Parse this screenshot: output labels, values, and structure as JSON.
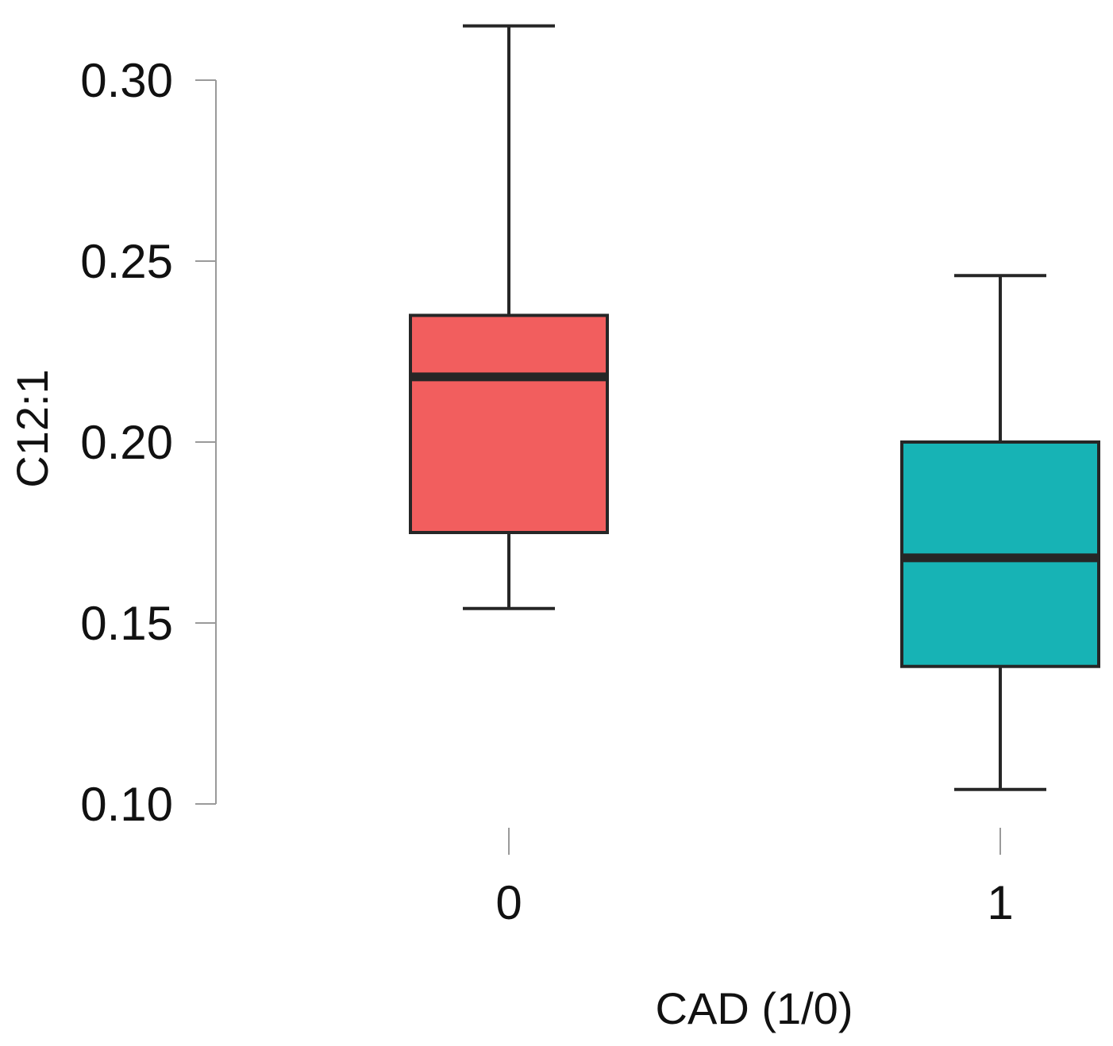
{
  "chart_data": {
    "type": "box",
    "title": "",
    "xlabel": "CAD (1/0)",
    "ylabel": "C12:1",
    "ylim": [
      0.1,
      0.3
    ],
    "y_ticks": [
      0.1,
      0.15,
      0.2,
      0.25,
      0.3
    ],
    "y_tick_labels": [
      "0.10",
      "0.15",
      "0.20",
      "0.25",
      "0.30"
    ],
    "categories": [
      "0",
      "1"
    ],
    "boxes": [
      {
        "name": "0",
        "whisker_low": 0.154,
        "q1": 0.175,
        "median": 0.218,
        "q3": 0.235,
        "whisker_high": 0.315,
        "color": "#f25e5e"
      },
      {
        "name": "1",
        "whisker_low": 0.104,
        "q1": 0.138,
        "median": 0.168,
        "q3": 0.2,
        "whisker_high": 0.246,
        "color": "#17b3b5"
      }
    ]
  }
}
